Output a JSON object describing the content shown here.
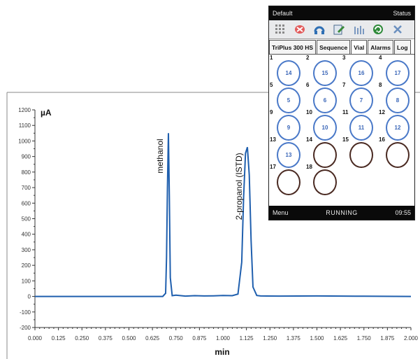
{
  "chart_data": {
    "type": "line",
    "title": "",
    "ylabel": "µA",
    "xlabel": "min",
    "xlim": [
      0.0,
      2.0
    ],
    "ylim": [
      -200,
      1200
    ],
    "xticks": [
      "0.000",
      "0.125",
      "0.250",
      "0.375",
      "0.500",
      "0.625",
      "0.750",
      "0.875",
      "1.000",
      "1.125",
      "1.250",
      "1.375",
      "1.500",
      "1.625",
      "1.750",
      "1.875",
      "2.000"
    ],
    "yticks": [
      "-200",
      "-100",
      "0",
      "100",
      "200",
      "300",
      "400",
      "500",
      "600",
      "700",
      "800",
      "900",
      "1000",
      "1100",
      "1200"
    ],
    "color": "#1f5fae",
    "peaks": [
      {
        "label": "methanol",
        "x": 0.71,
        "y": 1050
      },
      {
        "label": "2-propanol (ISTD)",
        "x": 1.13,
        "y": 960
      }
    ],
    "series": [
      {
        "x": [
          0.0,
          0.5,
          0.68,
          0.695,
          0.7,
          0.705,
          0.71,
          0.715,
          0.72,
          0.73,
          0.75,
          0.8,
          0.85,
          0.9,
          0.95,
          1.0,
          1.05,
          1.08,
          1.1,
          1.11,
          1.12,
          1.13,
          1.14,
          1.15,
          1.16,
          1.18,
          1.2,
          1.3,
          1.5,
          1.75,
          2.0
        ],
        "y": [
          0,
          0,
          0,
          20,
          250,
          700,
          1050,
          650,
          120,
          5,
          8,
          2,
          5,
          3,
          4,
          6,
          5,
          15,
          220,
          640,
          920,
          960,
          780,
          360,
          60,
          6,
          3,
          2,
          3,
          1,
          0
        ]
      }
    ]
  },
  "device": {
    "title": "Default",
    "status": "Status",
    "tabs": [
      "TriPlus 300 HS",
      "Sequence",
      "Vial",
      "Alarms",
      "Log"
    ],
    "active_tab": "Vial",
    "toolbar_icons": [
      "grid-icon",
      "cancel-icon",
      "headset-icon",
      "edit-icon",
      "rack-icon",
      "refresh-icon",
      "close-icon"
    ],
    "vials": [
      {
        "pos": "1",
        "label": "14"
      },
      {
        "pos": "2",
        "label": "15"
      },
      {
        "pos": "3",
        "label": "16"
      },
      {
        "pos": "4",
        "label": "17"
      },
      {
        "pos": "5",
        "label": "5"
      },
      {
        "pos": "6",
        "label": "6"
      },
      {
        "pos": "7",
        "label": "7"
      },
      {
        "pos": "8",
        "label": "8"
      },
      {
        "pos": "9",
        "label": "9"
      },
      {
        "pos": "10",
        "label": "10"
      },
      {
        "pos": "11",
        "label": "11"
      },
      {
        "pos": "12",
        "label": "12"
      },
      {
        "pos": "13",
        "label": "13"
      },
      {
        "pos": "14",
        "label": ""
      },
      {
        "pos": "15",
        "label": ""
      },
      {
        "pos": "16",
        "label": ""
      },
      {
        "pos": "17",
        "label": ""
      },
      {
        "pos": "18",
        "label": ""
      }
    ],
    "menu": "Menu",
    "run_status": "RUNNING",
    "time": "09:55"
  }
}
